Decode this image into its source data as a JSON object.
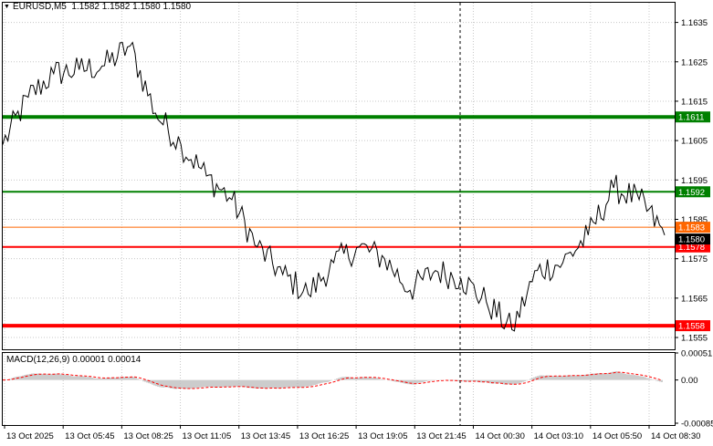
{
  "header": {
    "symbol_tf": "EURUSD,M5",
    "ohlc": "1.1582 1.1582 1.1580 1.1580"
  },
  "macd": {
    "label": "MACD(12,26,9)",
    "values": "0.00001 0.00014",
    "axis_ticks": [
      "0.00051",
      "0.00",
      "-0.00085"
    ]
  },
  "price_axis": {
    "ticks": [
      "1.1635",
      "1.1625",
      "1.1615",
      "1.1605",
      "1.1595",
      "1.1585",
      "1.1575",
      "1.1565",
      "1.1555"
    ],
    "current_price": "1.1580"
  },
  "time_axis": {
    "labels": [
      "13 Oct 2025",
      "13 Oct 05:45",
      "13 Oct 08:25",
      "13 Oct 11:05",
      "13 Oct 13:45",
      "13 Oct 16:25",
      "13 Oct 19:05",
      "13 Oct 21:45",
      "14 Oct 00:30",
      "14 Oct 03:10",
      "14 Oct 05:50",
      "14 Oct 08:30"
    ]
  },
  "levels": [
    {
      "price": 1.1611,
      "label": "1.1611",
      "color": "#008000",
      "kind": "resistance"
    },
    {
      "price": 1.1592,
      "label": "1.1592",
      "color": "#008000",
      "kind": "resistance"
    },
    {
      "price": 1.1583,
      "label": "1.1583",
      "color": "#ff6600",
      "kind": "current"
    },
    {
      "price": 1.1578,
      "label": "1.1578",
      "color": "#ff0000",
      "kind": "support"
    },
    {
      "price": 1.1558,
      "label": "1.1558",
      "color": "#ff0000",
      "kind": "support"
    }
  ],
  "colors": {
    "price_line": "#000000",
    "histogram": "#c0c0c0",
    "signal": "#ff0000",
    "grid": "#c8c8c8",
    "session_separator": "#000000"
  },
  "chart_data": {
    "type": "line",
    "title": "",
    "xlabel": "",
    "ylabel": "",
    "x": [
      "13 Oct 2025",
      "13 Oct 02:00",
      "13 Oct 04:00",
      "13 Oct 05:45",
      "13 Oct 07:00",
      "13 Oct 08:25",
      "13 Oct 09:30",
      "13 Oct 10:30",
      "13 Oct 11:05",
      "13 Oct 12:30",
      "13 Oct 13:45",
      "13 Oct 15:00",
      "13 Oct 16:25",
      "13 Oct 17:30",
      "13 Oct 19:05",
      "13 Oct 20:30",
      "13 Oct 21:45",
      "13 Oct 23:00",
      "14 Oct 00:30",
      "14 Oct 01:40",
      "14 Oct 02:20",
      "14 Oct 03:10",
      "14 Oct 04:30",
      "14 Oct 05:50",
      "14 Oct 06:40",
      "14 Oct 07:20",
      "14 Oct 08:30"
    ],
    "series": [
      {
        "values": [
          1.1604,
          1.1616,
          1.1622,
          1.1623,
          1.1624,
          1.1629,
          1.1612,
          1.1604,
          1.1596,
          1.159,
          1.1578,
          1.1571,
          1.1566,
          1.1574,
          1.1578,
          1.1575,
          1.1567,
          1.1572,
          1.157,
          1.1564,
          1.1557,
          1.1572,
          1.1574,
          1.1581,
          1.1593,
          1.159,
          1.1581
        ]
      }
    ],
    "ylim": [
      1.1552,
      1.164
    ],
    "grid": true,
    "macd_range": [
      -0.00085,
      0.00051
    ]
  }
}
